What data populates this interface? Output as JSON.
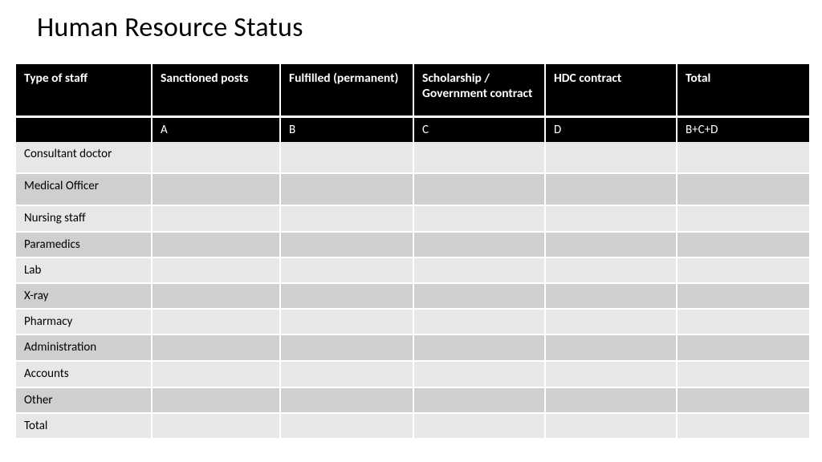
{
  "title": "Human Resource Status",
  "table": {
    "columns": [
      "Type of staff",
      "Sanctioned posts",
      "Fulfilled (permanent)",
      "Scholarship / Government contract",
      "HDC contract",
      "Total"
    ],
    "subheaders": [
      "",
      "A",
      "B",
      "C",
      "D",
      "B+C+D"
    ],
    "rows": [
      {
        "label": "Consultant doctor",
        "cells": [
          "",
          "",
          "",
          "",
          ""
        ],
        "shade": "light",
        "h": "tall"
      },
      {
        "label": "Medical Officer",
        "cells": [
          "",
          "",
          "",
          "",
          ""
        ],
        "shade": "dark",
        "h": "tall"
      },
      {
        "label": "Nursing staff",
        "cells": [
          "",
          "",
          "",
          "",
          ""
        ],
        "shade": "light",
        "h": ""
      },
      {
        "label": "Paramedics",
        "cells": [
          "",
          "",
          "",
          "",
          ""
        ],
        "shade": "dark",
        "h": "short"
      },
      {
        "label": "Lab",
        "cells": [
          "",
          "",
          "",
          "",
          ""
        ],
        "shade": "light",
        "h": "short"
      },
      {
        "label": "X-ray",
        "cells": [
          "",
          "",
          "",
          "",
          ""
        ],
        "shade": "dark",
        "h": "short"
      },
      {
        "label": "Pharmacy",
        "cells": [
          "",
          "",
          "",
          "",
          ""
        ],
        "shade": "light",
        "h": "short"
      },
      {
        "label": "Administration",
        "cells": [
          "",
          "",
          "",
          "",
          ""
        ],
        "shade": "dark",
        "h": ""
      },
      {
        "label": "Accounts",
        "cells": [
          "",
          "",
          "",
          "",
          ""
        ],
        "shade": "light",
        "h": ""
      },
      {
        "label": "Other",
        "cells": [
          "",
          "",
          "",
          "",
          ""
        ],
        "shade": "dark",
        "h": "short"
      },
      {
        "label": "Total",
        "cells": [
          "",
          "",
          "",
          "",
          ""
        ],
        "shade": "light",
        "h": "short"
      }
    ],
    "colors": {
      "header_bg": "#000000",
      "header_fg": "#ffffff",
      "row_light": "#e7e7e7",
      "row_dark": "#cfcfcf",
      "border": "#ffffff"
    }
  }
}
